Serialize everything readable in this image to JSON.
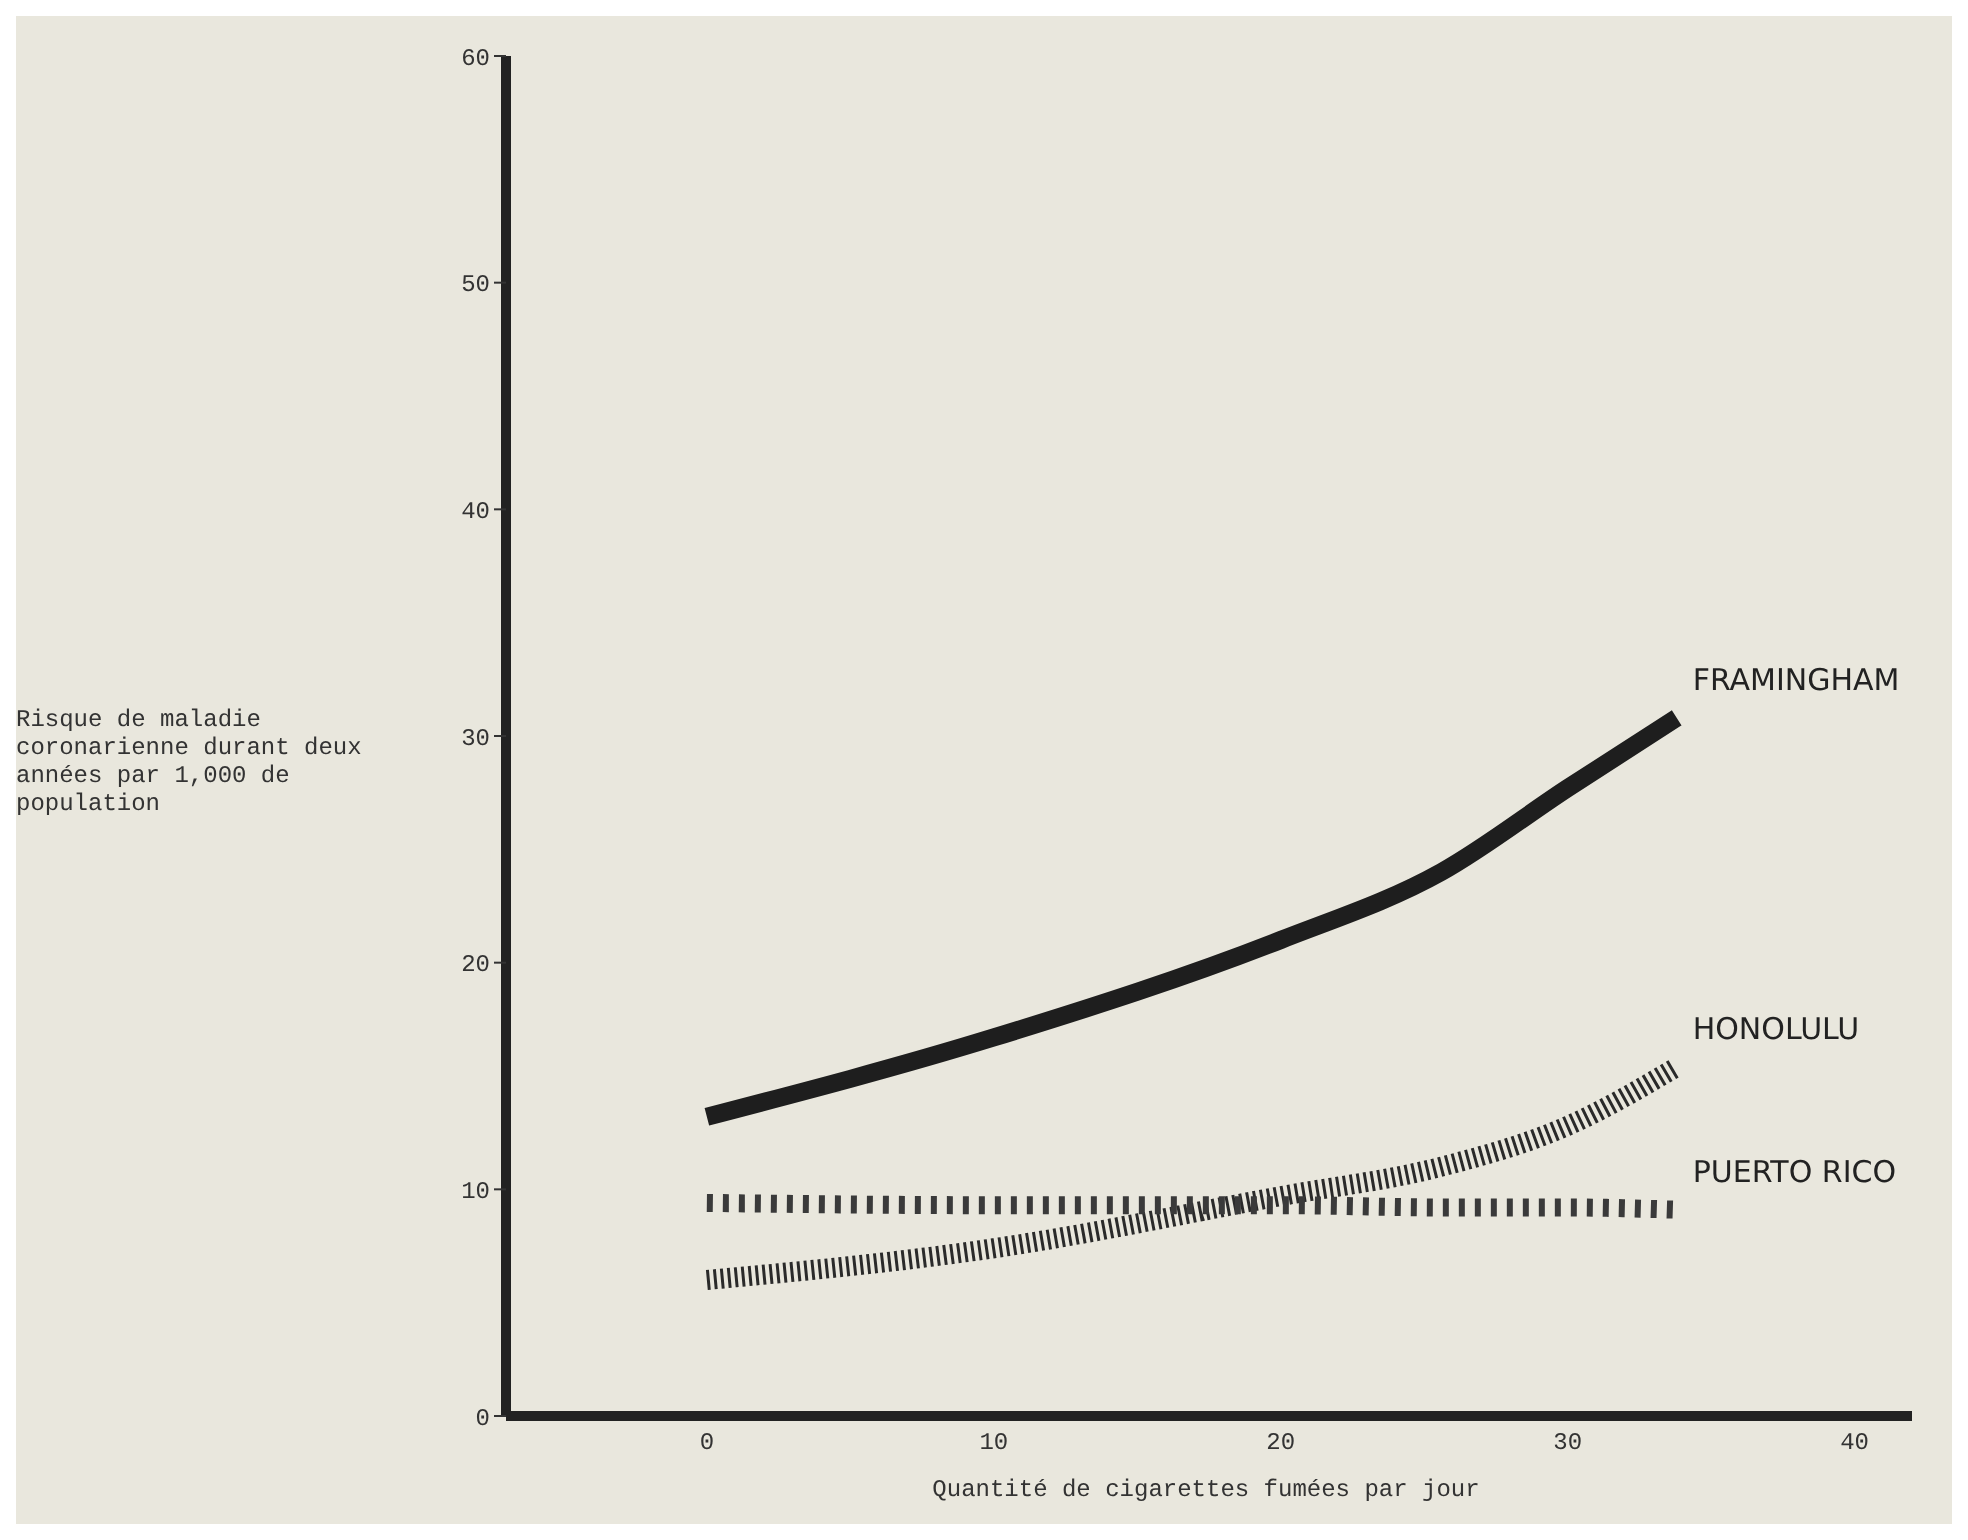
{
  "chart_data": {
    "type": "line",
    "xlabel": "Quantité de cigarettes fumées par jour",
    "ylabel": "Risque de maladie coronarienne durant deux années par 1,000 de population",
    "x": [
      0,
      10,
      20,
      25.6,
      30,
      33.8
    ],
    "series": [
      {
        "name": "FRAMINGHAM",
        "color": "#1e1e1e",
        "line_style": "solid",
        "values": [
          13.2,
          16.7,
          21,
          24,
          27.7,
          30.8
        ]
      },
      {
        "name": "HONOLULU",
        "color": "#2a2a2a",
        "line_style": "dotted",
        "values": [
          6,
          7.4,
          9.7,
          11,
          12.8,
          15.4
        ]
      },
      {
        "name": "PUERTO RICO",
        "color": "#3a3a3a",
        "line_style": "dashed",
        "values": [
          9.4,
          9.3,
          9.3,
          9.2,
          9.2,
          9.1
        ]
      }
    ],
    "xlim": [
      -7,
      42
    ],
    "xticks": [
      0,
      10,
      20,
      30,
      40
    ],
    "ylim": [
      0,
      60
    ],
    "yticks": [
      0,
      10,
      20,
      30,
      40,
      50,
      60
    ],
    "grid": false,
    "legend": false,
    "marker": "none"
  }
}
